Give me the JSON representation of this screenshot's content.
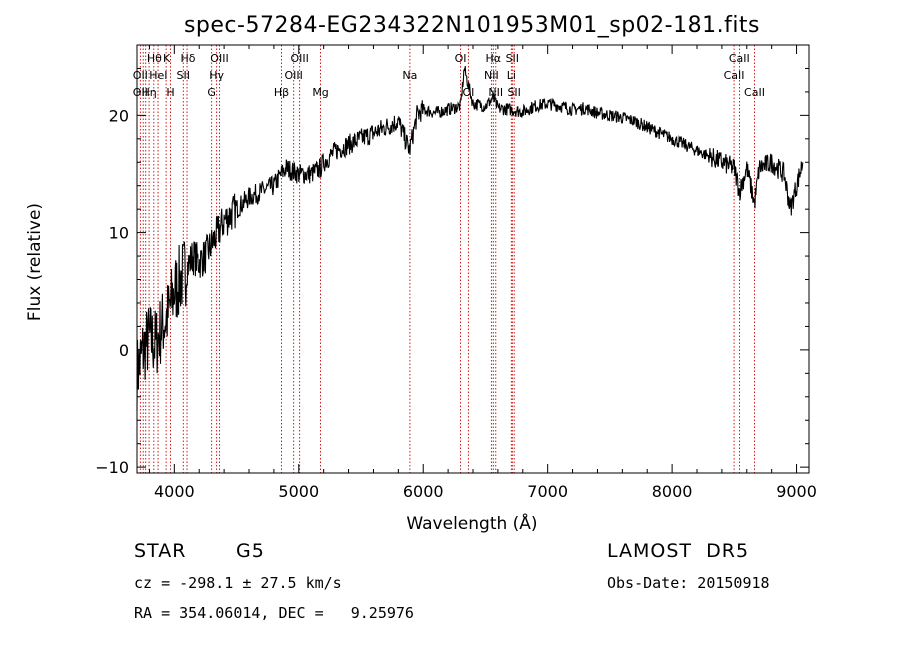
{
  "chart_data": {
    "type": "line",
    "title": "spec-57284-EG234322N101953M01_sp02-181.fits",
    "xlabel": "Wavelength (Å)",
    "ylabel": "Flux (relative)",
    "xlim": [
      3700,
      9100
    ],
    "ylim": [
      -10.5,
      26
    ],
    "xticks": [
      4000,
      5000,
      6000,
      7000,
      8000,
      9000
    ],
    "xtick_labels": [
      "4000",
      "5000",
      "6000",
      "7000",
      "8000",
      "9000"
    ],
    "yticks": [
      -10,
      0,
      10,
      20
    ],
    "ytick_labels": [
      "−10",
      "0",
      "10",
      "20"
    ],
    "grid": false,
    "series": [
      {
        "x": [
          3700,
          3750,
          3800,
          3850,
          3900,
          3950,
          4000,
          4050,
          4100,
          4150,
          4200,
          4250,
          4300,
          4350,
          4400,
          4450,
          4500,
          4600,
          4700,
          4800,
          4861,
          4900,
          5000,
          5100,
          5175,
          5200,
          5300,
          5400,
          5500,
          5600,
          5700,
          5800,
          5890,
          5950,
          6000,
          6100,
          6200,
          6300,
          6330,
          6400,
          6500,
          6563,
          6600,
          6700,
          6800,
          6900,
          7000,
          7100,
          7200,
          7300,
          7400,
          7500,
          7600,
          7700,
          7800,
          7900,
          8000,
          8100,
          8200,
          8300,
          8400,
          8500,
          8542,
          8600,
          8662,
          8700,
          8800,
          8900,
          8950,
          9000,
          9050
        ],
        "y": [
          -2,
          0,
          1,
          0.5,
          2,
          3,
          5,
          6,
          7,
          8,
          7.5,
          8,
          9,
          10,
          11,
          11.5,
          12,
          13,
          13.5,
          14,
          15,
          15.5,
          15,
          15,
          15.5,
          16,
          17,
          17.5,
          18,
          18.5,
          19,
          19.5,
          17,
          20,
          20.5,
          20.2,
          20.5,
          20.8,
          24,
          21,
          20.8,
          21.5,
          20.6,
          20.5,
          20.3,
          20.8,
          21,
          20.8,
          20.5,
          20.6,
          20.2,
          20,
          19.8,
          19.5,
          19,
          18.5,
          18,
          17.5,
          17,
          16.5,
          16,
          15.5,
          13.5,
          15.5,
          12.5,
          15.5,
          16,
          15,
          12,
          14,
          16
        ]
      }
    ],
    "lines": [
      {
        "wl": 3727,
        "labels": [
          "OII"
        ]
      },
      {
        "wl": 3750,
        "labels": [
          "OII"
        ]
      },
      {
        "wl": 3770,
        "labels": [
          "Hη"
        ]
      },
      {
        "wl": 3797,
        "labels": [
          "OII"
        ]
      },
      {
        "wl": 3835,
        "labels": [
          "Hθ",
          "Hη"
        ]
      },
      {
        "wl": 3869,
        "labels": [
          "HeI"
        ]
      },
      {
        "wl": 3934,
        "labels": [
          "K"
        ]
      },
      {
        "wl": 3969,
        "labels": [
          "H"
        ]
      },
      {
        "wl": 4072,
        "labels": [
          "SII"
        ]
      },
      {
        "wl": 4102,
        "labels": [
          "Hδ"
        ]
      },
      {
        "wl": 4300,
        "labels": [
          "G"
        ]
      },
      {
        "wl": 4340,
        "labels": [
          "Hγ"
        ]
      },
      {
        "wl": 4363,
        "labels": [
          "OIII"
        ]
      },
      {
        "wl": 4861,
        "labels": [
          "Hβ"
        ]
      },
      {
        "wl": 4959,
        "labels": [
          "OIII"
        ]
      },
      {
        "wl": 5007,
        "labels": [
          "OIII"
        ]
      },
      {
        "wl": 5175,
        "labels": [
          "Mg"
        ]
      },
      {
        "wl": 5893,
        "labels": [
          "Na"
        ]
      },
      {
        "wl": 6300,
        "labels": [
          "OI"
        ]
      },
      {
        "wl": 6363,
        "labels": [
          "OI"
        ]
      },
      {
        "wl": 6548,
        "labels": [
          "NII"
        ]
      },
      {
        "wl": 6563,
        "labels": [
          "Hα"
        ]
      },
      {
        "wl": 6583,
        "labels": [
          "NII"
        ]
      },
      {
        "wl": 6708,
        "labels": [
          "Li"
        ]
      },
      {
        "wl": 6716,
        "labels": [
          "SII"
        ]
      },
      {
        "wl": 6731,
        "labels": [
          "SII"
        ]
      },
      {
        "wl": 8498,
        "labels": [
          "CaII"
        ]
      },
      {
        "wl": 8542,
        "labels": [
          "CaII"
        ]
      },
      {
        "wl": 8662,
        "labels": [
          "CaII"
        ]
      }
    ],
    "line_labels": [
      {
        "text": "Hθ",
        "wl": 3840,
        "row": 1
      },
      {
        "text": "K",
        "wl": 3938,
        "row": 1
      },
      {
        "text": "Hδ",
        "wl": 4110,
        "row": 1
      },
      {
        "text": "OIII",
        "wl": 4363,
        "row": 1
      },
      {
        "text": "OIII",
        "wl": 5007,
        "row": 1
      },
      {
        "text": "OI",
        "wl": 6300,
        "row": 1
      },
      {
        "text": "Hα",
        "wl": 6563,
        "row": 1
      },
      {
        "text": "SII",
        "wl": 6716,
        "row": 1
      },
      {
        "text": "CaII",
        "wl": 8540,
        "row": 1
      },
      {
        "text": "OII",
        "wl": 3727,
        "row": 2
      },
      {
        "text": "HeI",
        "wl": 3872,
        "row": 2
      },
      {
        "text": "SII",
        "wl": 4072,
        "row": 2
      },
      {
        "text": "Hγ",
        "wl": 4340,
        "row": 2
      },
      {
        "text": "OIII",
        "wl": 4959,
        "row": 2
      },
      {
        "text": "Na",
        "wl": 5893,
        "row": 2
      },
      {
        "text": "NII",
        "wl": 6548,
        "row": 2
      },
      {
        "text": "Li",
        "wl": 6708,
        "row": 2
      },
      {
        "text": "CaII",
        "wl": 8498,
        "row": 2
      },
      {
        "text": "OII",
        "wl": 3727,
        "row": 3
      },
      {
        "text": "Hη",
        "wl": 3797,
        "row": 3
      },
      {
        "text": "H",
        "wl": 3969,
        "row": 3
      },
      {
        "text": "G",
        "wl": 4300,
        "row": 3
      },
      {
        "text": "Hβ",
        "wl": 4861,
        "row": 3
      },
      {
        "text": "Mg",
        "wl": 5175,
        "row": 3
      },
      {
        "text": "OI",
        "wl": 6363,
        "row": 3
      },
      {
        "text": "NII",
        "wl": 6583,
        "row": 3
      },
      {
        "text": "SII",
        "wl": 6731,
        "row": 3
      },
      {
        "text": "CaII",
        "wl": 8662,
        "row": 3
      }
    ],
    "colors": {
      "spectrum": "#000000",
      "line_markers": "#cc0000",
      "axes": "#000000"
    }
  },
  "info": {
    "class": "STAR",
    "subclass": "G5",
    "survey": "LAMOST  DR5",
    "cz": "cz = -298.1 ± 27.5 km/s",
    "obs_date": "Obs-Date: 20150918",
    "coords": "RA = 354.06014, DEC =   9.25976"
  }
}
